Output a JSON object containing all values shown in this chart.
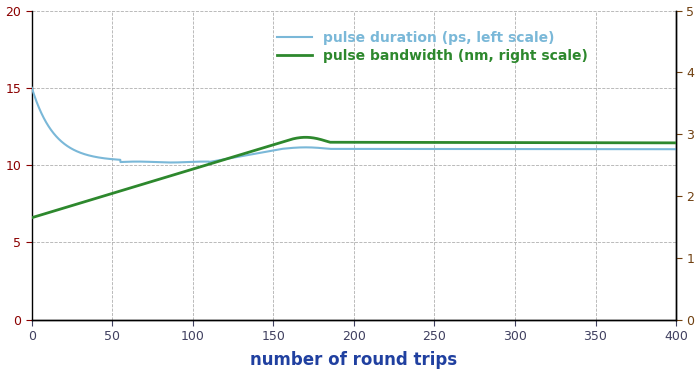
{
  "xlabel": "number of round trips",
  "xlim": [
    0,
    400
  ],
  "ylim_left": [
    0,
    20
  ],
  "ylim_right": [
    0,
    5
  ],
  "yticks_left": [
    0,
    5,
    10,
    15,
    20
  ],
  "yticks_right": [
    0,
    1,
    2,
    3,
    4,
    5
  ],
  "xticks": [
    0,
    50,
    100,
    150,
    200,
    250,
    300,
    350,
    400
  ],
  "color_blue": "#7ab8d8",
  "color_green": "#2d882d",
  "legend_labels": [
    "pulse duration (ps, left scale)",
    "pulse bandwidth (nm, right scale)"
  ],
  "legend_colors": [
    "#7ab8d8",
    "#2d882d"
  ],
  "background_color": "#ffffff",
  "grid_color": "#b0b0b0",
  "spine_color": "#000000",
  "tick_color_left": "#8b0000",
  "tick_color_x": "#404060",
  "tick_color_right": "#704010",
  "xlabel_color": "#2040a0",
  "xlabel_fontsize": 12
}
